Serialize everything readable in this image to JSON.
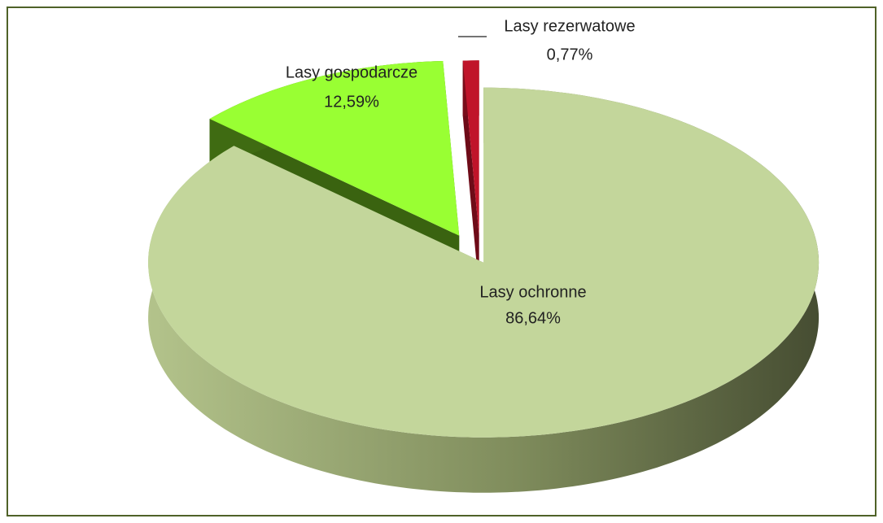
{
  "chart_data": {
    "type": "pie3d",
    "categories": [
      "Lasy ochronne",
      "Lasy gospodarcze",
      "Lasy rezerwatowe"
    ],
    "values": [
      86.64,
      12.59,
      0.77
    ],
    "value_labels": [
      "86,64%",
      "12,59%",
      "0,77%"
    ],
    "colors": [
      "#c3d69b",
      "#99ff33",
      "#c0142a"
    ]
  }
}
